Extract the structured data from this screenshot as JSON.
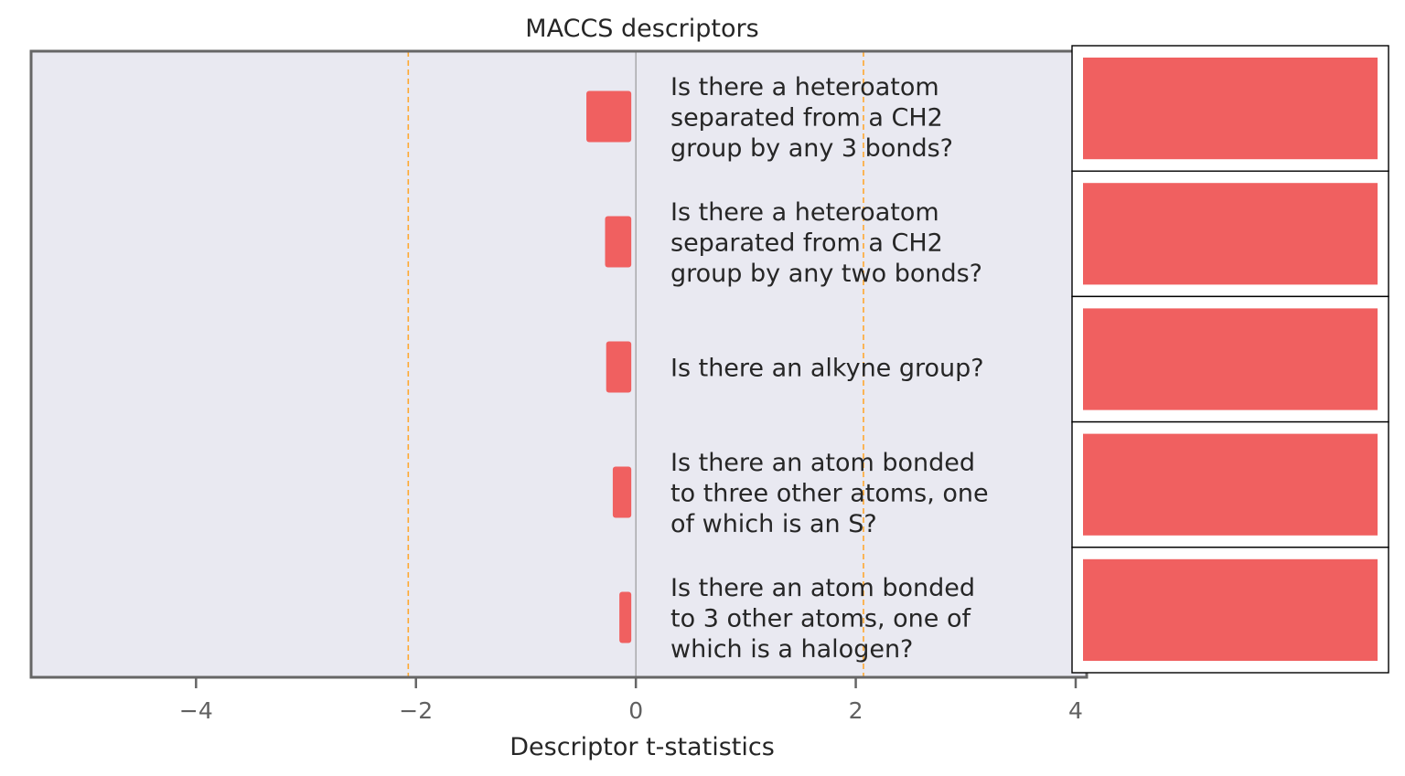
{
  "chart_data": {
    "type": "bar",
    "orientation": "horizontal",
    "title": "MACCS descriptors",
    "xlabel": "Descriptor t-statistics",
    "ylabel": "",
    "xlim": [
      -5.5,
      4.1
    ],
    "xticks": [
      -4,
      -2,
      0,
      2,
      4
    ],
    "xtick_labels": [
      "−4",
      "−2",
      "0",
      "2",
      "4"
    ],
    "threshold_lines": [
      -2.07,
      2.07
    ],
    "grid": false,
    "categories": [
      [
        "Is there a heteroatom",
        "separated from a CH2",
        "group by any 3 bonds?"
      ],
      [
        "Is there a heteroatom",
        "separated from a CH2",
        "group by any two bonds?"
      ],
      [
        "Is there an alkyne group?"
      ],
      [
        "Is there an atom bonded",
        "to three other atoms, one",
        "of which is an S?"
      ],
      [
        "Is there an atom bonded",
        "to 3 other atoms, one of",
        "which is a halogen?"
      ]
    ],
    "values": [
      -0.45,
      -0.28,
      -0.27,
      -0.21,
      -0.15
    ]
  },
  "colors": {
    "bar": "#f06060",
    "background": "#e9e9f1",
    "axis": "#666666",
    "threshold": "#ffa830",
    "zero_line": "#999999"
  }
}
